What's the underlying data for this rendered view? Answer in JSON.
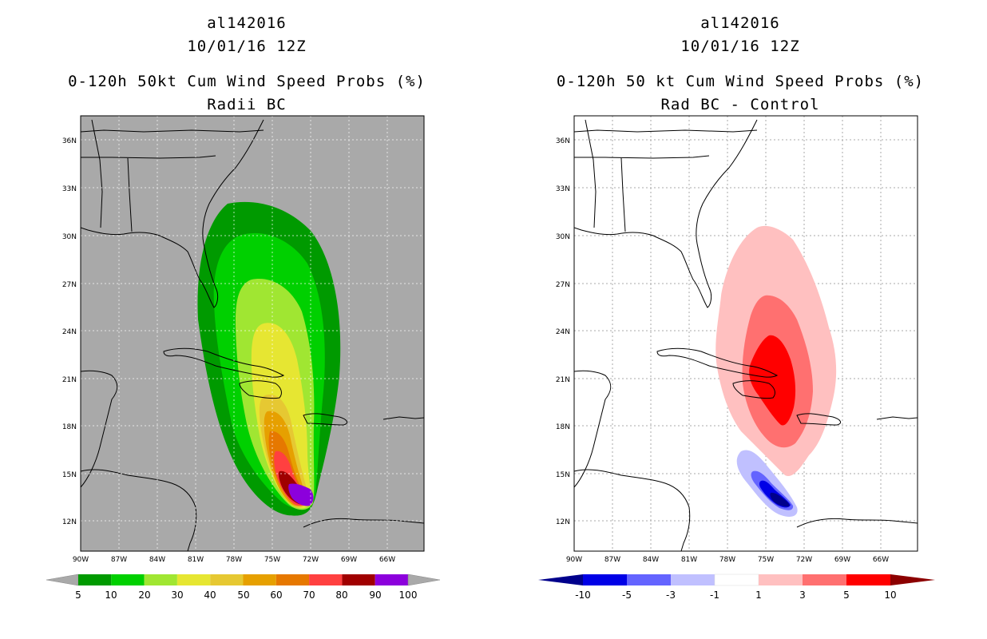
{
  "left": {
    "storm": "al142016",
    "date": "10/01/16 12Z",
    "title": "0-120h 50kt Cum Wind Speed Probs (%)",
    "subtitle": "Radii BC",
    "background_color": "#a9a9a9",
    "colorbar": {
      "colors": [
        "#009a00",
        "#00d000",
        "#a0e632",
        "#e6e632",
        "#e6c832",
        "#e6a000",
        "#e67800",
        "#ff4040",
        "#a00000",
        "#8c00dc"
      ],
      "labels": [
        "5",
        "10",
        "20",
        "30",
        "40",
        "50",
        "60",
        "70",
        "80",
        "90",
        "100"
      ]
    }
  },
  "right": {
    "storm": "al142016",
    "date": "10/01/16 12Z",
    "title": "0-120h 50 kt Cum Wind Speed Probs (%)",
    "subtitle": "Rad BC - Control",
    "background_color": "#ffffff",
    "colorbar": {
      "colors": [
        "#00008c",
        "#0000e6",
        "#6464ff",
        "#c0c0ff",
        "#ffffff",
        "#ffc0c0",
        "#ff7070",
        "#ff0000",
        "#8c0000"
      ],
      "labels": [
        "-10",
        "-5",
        "-3",
        "-1",
        "1",
        "3",
        "5",
        "10"
      ]
    }
  },
  "axes": {
    "lon_ticks": [
      "90W",
      "87W",
      "84W",
      "81W",
      "78W",
      "75W",
      "72W",
      "69W",
      "66W"
    ],
    "lat_ticks": [
      "36N",
      "33N",
      "30N",
      "27N",
      "24N",
      "21N",
      "18N",
      "15N",
      "12N"
    ]
  }
}
